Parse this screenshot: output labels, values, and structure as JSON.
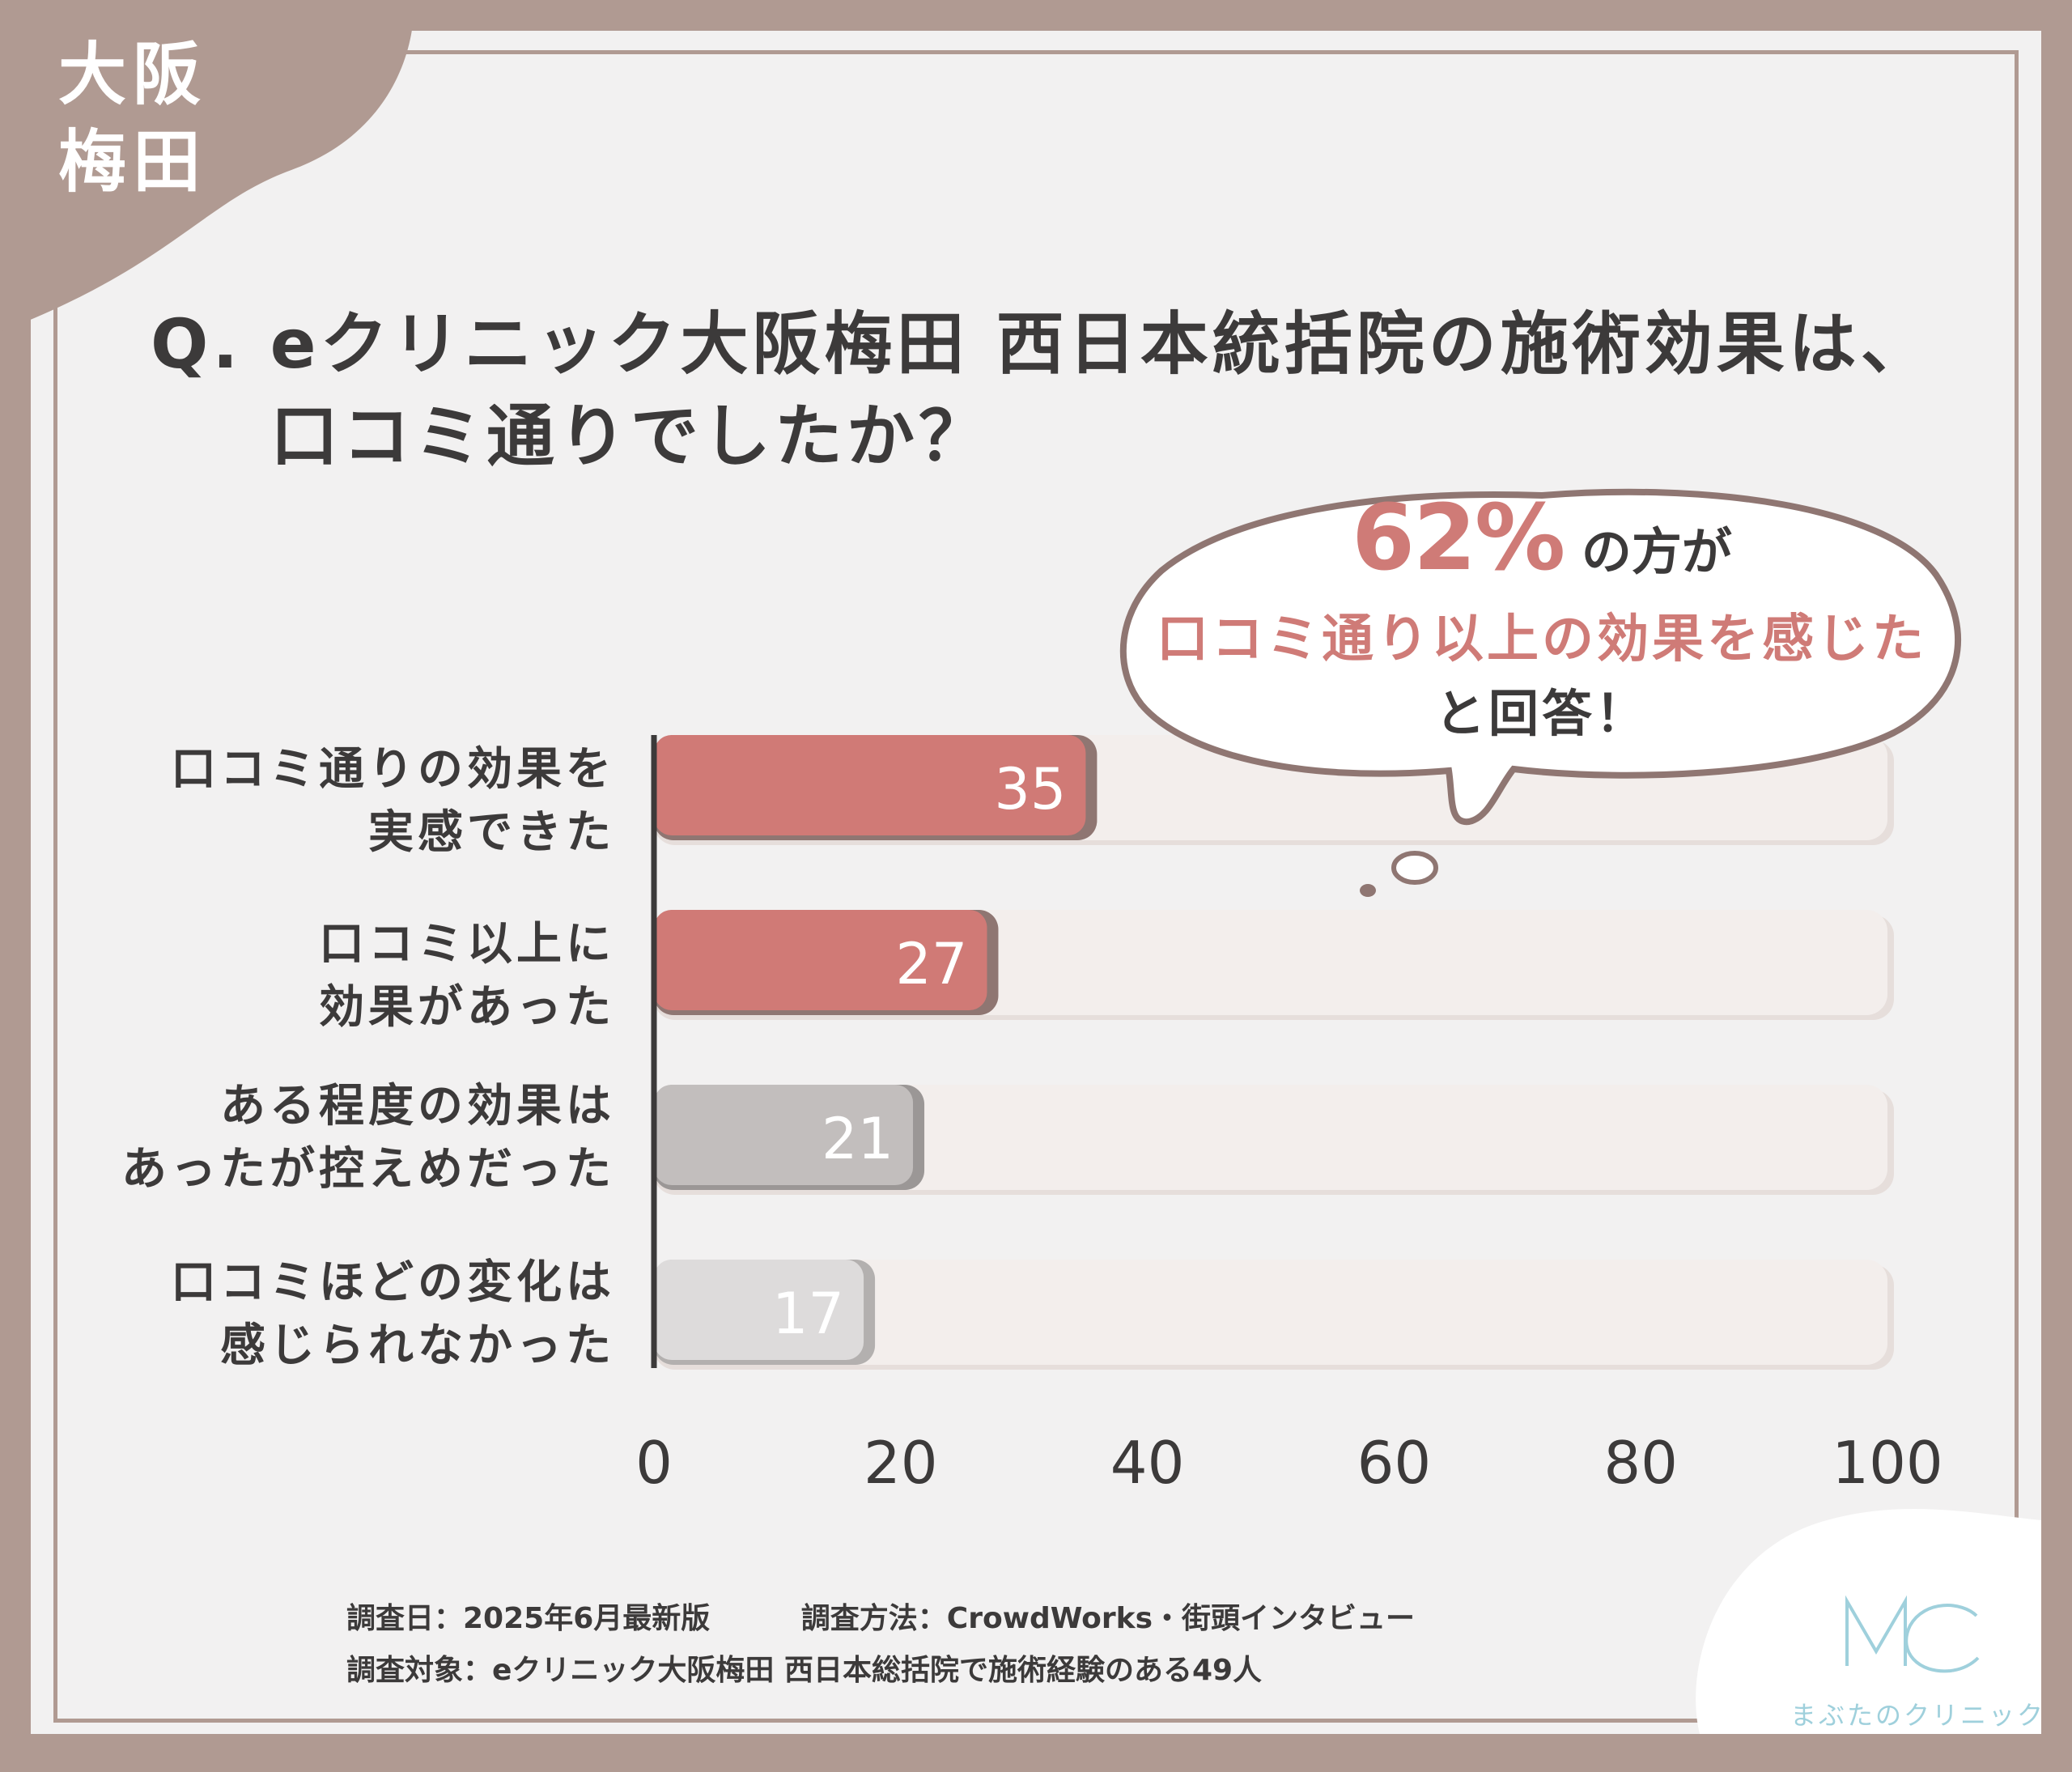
{
  "corner_badge": {
    "line1": "大阪",
    "line2": "梅田"
  },
  "question": {
    "line1": "Q. eクリニック大阪梅田 西日本統括院の施術効果は、",
    "line2": "口コミ通りでしたか？"
  },
  "callout": {
    "percent": "62%",
    "percent_suffix": "の方が",
    "highlight": "口コミ通り以上の効果を感じた",
    "tail": "と回答！"
  },
  "categories": [
    {
      "line1": "口コミ通りの効果を",
      "line2": "実感できた"
    },
    {
      "line1": "口コミ以上に",
      "line2": "効果があった"
    },
    {
      "line1": "ある程度の効果は",
      "line2": "あったが控えめだった"
    },
    {
      "line1": "口コミほどの変化は",
      "line2": "感じられなかった"
    }
  ],
  "chart_data": {
    "type": "bar",
    "orientation": "horizontal",
    "categories": [
      "口コミ通りの効果を実感できた",
      "口コミ以上に効果があった",
      "ある程度の効果はあったが控えめだった",
      "口コミほどの変化は感じられなかった"
    ],
    "values": [
      35,
      27,
      21,
      17
    ],
    "xlim": [
      0,
      100
    ],
    "xticks": [
      "0",
      "20",
      "40",
      "60",
      "80",
      "100"
    ],
    "grid": false
  },
  "colors": {
    "accent": "#cf7b77",
    "bar_values": [
      "#d07a76",
      "#d07a76",
      "#c2bebd",
      "#dddbdb"
    ],
    "bar_shadows": [
      "#8f7672",
      "#8f7672",
      "#9b9796",
      "#b3b0af"
    ],
    "bar_labels": [
      "#ffffff",
      "#ffffff",
      "#ffffff",
      "#ffffff"
    ],
    "track": "#f3eeec",
    "frame": "#b09a92",
    "text": "#3c3a3a",
    "logo": "#9fd0dc"
  },
  "footer": {
    "date": "調査日：2025年6月最新版",
    "method": "調査方法：CrowdWorks・街頭インタビュー",
    "target": "調査対象：eクリニック大阪梅田 西日本総括院で施術経験のある49人"
  },
  "logo": {
    "mark": "MC",
    "name": "まぶたのクリニック"
  }
}
